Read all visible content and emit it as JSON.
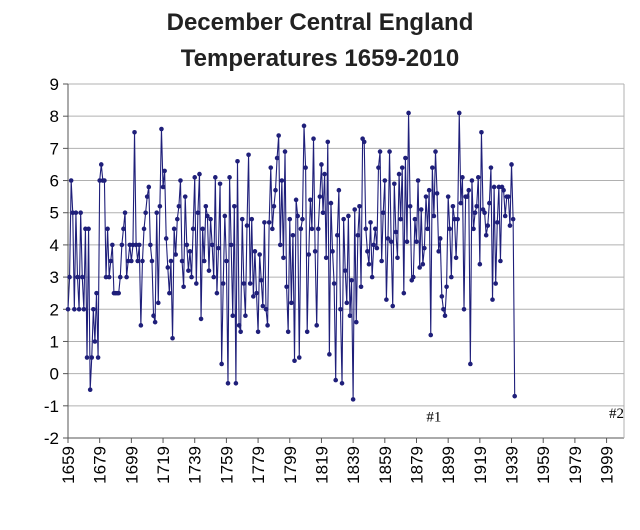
{
  "chart_data": {
    "type": "line",
    "title": "December Central England",
    "subtitle": "Temperatures 1659-2010",
    "xlabel": "",
    "ylabel": "",
    "xlim": [
      1659,
      2010
    ],
    "ylim": [
      -2,
      9
    ],
    "yticks": [
      "9",
      "8",
      "7",
      "6",
      "5",
      "4",
      "3",
      "2",
      "1",
      "0",
      "-1",
      "-2"
    ],
    "xticks": [
      "1659",
      "1679",
      "1699",
      "1719",
      "1739",
      "1759",
      "1779",
      "1799",
      "1819",
      "1839",
      "1859",
      "1879",
      "1899",
      "1919",
      "1939",
      "1959",
      "1979",
      "1999"
    ],
    "grid": "horizontal",
    "line_color": "#1f1f7a",
    "grid_color": "#b0b0b0",
    "annotations": [
      {
        "text": "#1",
        "x": 1890,
        "y": -0.8
      },
      {
        "text": "#2",
        "x": 2010,
        "y": -0.7
      }
    ],
    "series": [
      {
        "x_start": 1659,
        "values": [
          2.0,
          3.0,
          6.0,
          5.0,
          2.0,
          5.0,
          3.0,
          2.0,
          5.0,
          3.0,
          2.0,
          4.5,
          0.5,
          4.5,
          -0.5,
          0.5,
          2.0,
          1.0,
          2.5,
          0.5,
          6.0,
          6.5,
          6.0,
          6.0,
          3.0,
          4.5,
          3.0,
          3.5,
          4.0,
          2.5,
          2.5,
          2.5,
          2.5,
          3.0,
          4.0,
          4.5,
          5.0,
          3.0,
          3.5,
          4.0,
          3.5,
          4.0,
          7.5,
          4.0,
          3.5,
          4.0,
          1.5,
          3.5,
          4.5,
          5.0,
          5.5,
          5.8,
          4.0,
          3.5,
          1.8,
          1.6,
          5.0,
          2.2,
          5.2,
          7.6,
          5.8,
          6.3,
          4.2,
          3.3,
          2.5,
          3.5,
          1.1,
          4.5,
          3.7,
          4.8,
          5.2,
          6.0,
          3.5,
          2.7,
          5.5,
          4.0,
          3.2,
          3.8,
          3.0,
          4.5,
          6.1,
          2.8,
          5.0,
          6.2,
          1.7,
          4.5,
          3.5,
          5.2,
          4.9,
          3.2,
          4.8,
          4.0,
          3.0,
          6.1,
          2.5,
          3.9,
          5.9,
          0.3,
          2.8,
          4.9,
          3.5,
          -0.3,
          6.1,
          4.0,
          1.8,
          5.2,
          -0.3,
          6.6,
          1.5,
          1.3,
          4.8,
          2.8,
          1.8,
          4.6,
          6.8,
          2.8,
          4.8,
          2.4,
          3.8,
          2.5,
          1.3,
          3.7,
          2.9,
          2.1,
          4.7,
          2.0,
          1.5,
          4.7,
          6.4,
          4.5,
          5.2,
          5.7,
          6.7,
          7.4,
          4.0,
          6.0,
          3.6,
          6.9,
          2.7,
          1.3,
          4.8,
          2.2,
          4.3,
          0.4,
          5.4,
          4.9,
          0.5,
          4.5,
          4.8,
          7.7,
          6.4,
          1.3,
          3.7,
          5.4,
          4.5,
          7.3,
          3.8,
          1.5,
          4.5,
          5.5,
          6.5,
          5.0,
          6.2,
          3.6,
          7.2,
          0.6,
          5.3,
          3.8,
          2.8,
          -0.2,
          4.3,
          5.7,
          2.0,
          -0.3,
          4.8,
          3.2,
          2.2,
          4.9,
          1.8,
          2.9,
          -0.8,
          5.1,
          1.6,
          4.3,
          5.2,
          2.7,
          7.3,
          7.2,
          4.5,
          3.8,
          3.4,
          4.7,
          3.0,
          4.0,
          4.5,
          3.9,
          6.4,
          6.9,
          3.5,
          5.0,
          6.0,
          2.3,
          4.2,
          6.9,
          4.1,
          2.1,
          5.9,
          4.4,
          3.6,
          6.2,
          4.8,
          6.4,
          2.5,
          6.7,
          4.1,
          8.1,
          5.2,
          2.9,
          3.0,
          4.8,
          4.1,
          6.0,
          3.3,
          5.1,
          3.4,
          3.9,
          5.5,
          4.5,
          5.7,
          1.2,
          6.4,
          4.9,
          6.9,
          5.6,
          3.8,
          4.2,
          2.4,
          2.0,
          1.8,
          2.7,
          5.5,
          4.5,
          3.0,
          5.2,
          4.8,
          3.6,
          4.8,
          8.1,
          5.3,
          6.1,
          2.0,
          5.5,
          5.5,
          5.7,
          0.3,
          6.0,
          4.5,
          5.0,
          5.2,
          6.1,
          3.4,
          7.5,
          5.1,
          5.0,
          4.3,
          4.6,
          5.3,
          6.4,
          2.3,
          5.8,
          2.8,
          4.7,
          5.8,
          3.5,
          5.8,
          5.7,
          4.9,
          5.5,
          5.5,
          4.6,
          6.5,
          4.8,
          -0.7
        ]
      }
    ]
  }
}
